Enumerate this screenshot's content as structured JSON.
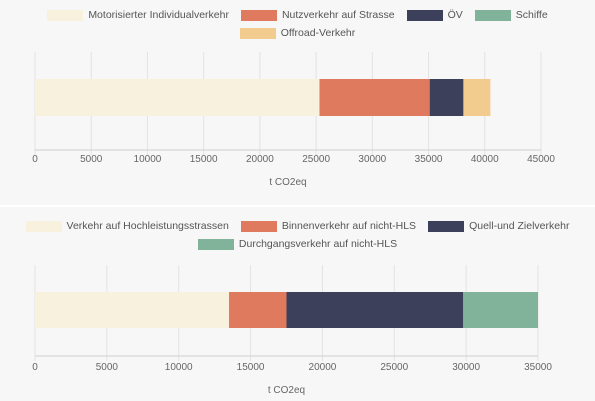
{
  "colors": {
    "cream": "#f7f1dd",
    "salmon": "#e07a5f",
    "navy": "#3d405b",
    "green": "#81b29a",
    "sand": "#f2cc8f",
    "grid": "#e3e3e3",
    "panel": "#f7f7f7"
  },
  "chart_data": [
    {
      "type": "bar",
      "orientation": "horizontal-stacked",
      "title": "",
      "xlabel": "t CO2eq",
      "ylabel": "",
      "xlim": [
        0,
        45000
      ],
      "x_ticks": [
        0,
        5000,
        10000,
        15000,
        20000,
        25000,
        30000,
        35000,
        40000,
        45000
      ],
      "legend_position": "top",
      "grid": true,
      "series": [
        {
          "name": "Motorisierter Individualverkehr",
          "values": [
            25300
          ],
          "color": "#f7f1dd"
        },
        {
          "name": "Nutzverkehr auf Strasse",
          "values": [
            9800
          ],
          "color": "#e07a5f"
        },
        {
          "name": "ÖV",
          "values": [
            3000
          ],
          "color": "#3d405b"
        },
        {
          "name": "Schiffe",
          "values": [
            0
          ],
          "color": "#81b29a"
        },
        {
          "name": "Offroad-Verkehr",
          "values": [
            2400
          ],
          "color": "#f2cc8f"
        }
      ]
    },
    {
      "type": "bar",
      "orientation": "horizontal-stacked",
      "title": "",
      "xlabel": "t CO2eq",
      "ylabel": "",
      "xlim": [
        0,
        35000
      ],
      "x_ticks": [
        0,
        5000,
        10000,
        15000,
        20000,
        25000,
        30000,
        35000
      ],
      "legend_position": "top",
      "grid": true,
      "series": [
        {
          "name": "Verkehr auf Hochleistungsstrassen",
          "values": [
            13500
          ],
          "color": "#f7f1dd"
        },
        {
          "name": "Binnenverkehr auf nicht-HLS",
          "values": [
            4000
          ],
          "color": "#e07a5f"
        },
        {
          "name": "Quell-und Zielverkehr",
          "values": [
            12300
          ],
          "color": "#3d405b"
        },
        {
          "name": "Durchgangsverkehr auf nicht-HLS",
          "values": [
            5200
          ],
          "color": "#81b29a"
        }
      ]
    }
  ]
}
